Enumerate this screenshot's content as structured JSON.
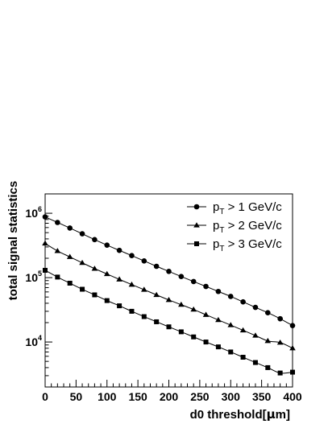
{
  "chart_data": {
    "type": "line",
    "title": "",
    "xlabel": {
      "prefix": "d0 threshold[",
      "greek": "μ",
      "suffix": "m]"
    },
    "ylabel": "total signal statistics",
    "xlim": [
      0,
      400
    ],
    "ylim": [
      2000,
      2000000
    ],
    "yscale": "log",
    "grid": false,
    "legend_position": "top-right",
    "x_ticks": [
      0,
      50,
      100,
      150,
      200,
      250,
      300,
      350,
      400
    ],
    "y_ticks": [
      {
        "value": 10000,
        "base": "10",
        "exp": "4"
      },
      {
        "value": 100000,
        "base": "10",
        "exp": "5"
      },
      {
        "value": 1000000,
        "base": "10",
        "exp": "6"
      }
    ],
    "x": [
      0,
      20,
      40,
      60,
      80,
      100,
      120,
      140,
      160,
      180,
      200,
      220,
      240,
      260,
      280,
      300,
      320,
      340,
      360,
      380,
      400
    ],
    "series": [
      {
        "label": {
          "prefix": "p",
          "sub": "T",
          "suffix": " > 1 GeV/c"
        },
        "marker": "circle",
        "values": [
          880000,
          720000,
          590000,
          480000,
          390000,
          320000,
          265000,
          220000,
          182000,
          150000,
          125000,
          104000,
          87000,
          73000,
          61000,
          51000,
          42000,
          34500,
          28500,
          23000,
          18000
        ]
      },
      {
        "label": {
          "prefix": "p",
          "sub": "T",
          "suffix": " > 2 GeV/c"
        },
        "marker": "triangle",
        "values": [
          340000,
          260000,
          210000,
          170000,
          138000,
          114000,
          94000,
          78000,
          65000,
          54000,
          45000,
          38000,
          32000,
          26500,
          22000,
          18300,
          15200,
          12600,
          10400,
          9800,
          8000
        ]
      },
      {
        "label": {
          "prefix": "p",
          "sub": "T",
          "suffix": " > 3 GeV/c"
        },
        "marker": "square",
        "values": [
          130000,
          102000,
          82000,
          66000,
          54000,
          44000,
          36500,
          30000,
          24800,
          20600,
          17200,
          14400,
          12000,
          10000,
          8400,
          7000,
          5800,
          4800,
          4000,
          3300,
          3400
        ]
      }
    ]
  }
}
